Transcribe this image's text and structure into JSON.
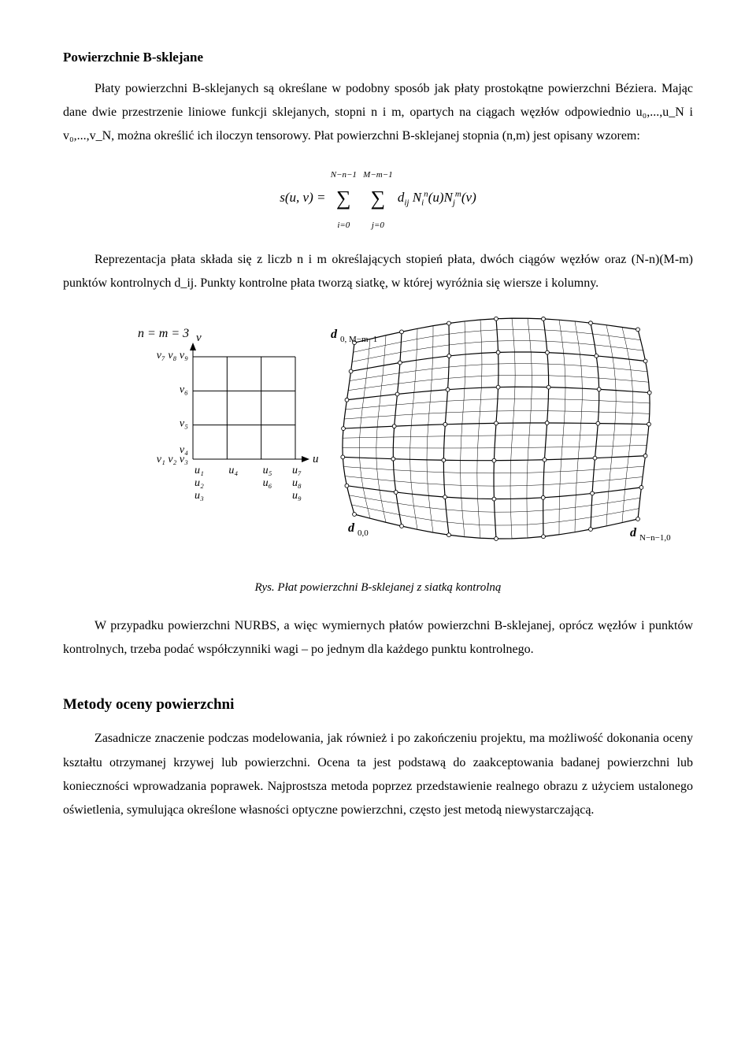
{
  "heading_top": "Powierzchnie B-sklejane",
  "p1": "Płaty powierzchni B-sklejanych są określane w podobny sposób jak płaty prostokątne powierzchni Béziera. Mając dane dwie przestrzenie liniowe funkcji sklejanych, stopni n i m, opartych na ciągach węzłów odpowiednio u₀,...,u_N i v₀,...,v_N, można określić ich iloczyn tensorowy. Płat powierzchni B-sklejanej stopnia (n,m) jest opisany wzorem:",
  "formula": {
    "lhs": "s(u, v) =",
    "sum1_lower": "i=0",
    "sum1_upper": "N−n−1",
    "sum2_lower": "j=0",
    "sum2_upper": "M−m−1",
    "rhs": "d_ij N_i^n(u) N_j^m(v)"
  },
  "p2": "Reprezentacja płata składa się z liczb n i m określających stopień płata, dwóch ciągów węzłów oraz (N-n)(M-m) punktów kontrolnych d_ij. Punkty kontrolne płata tworzą siatkę, w której wyróżnia się wiersze i kolumny.",
  "figure": {
    "type": "diagram",
    "left_label_eq": "n = m = 3",
    "top_right_label": "d",
    "top_right_sub": "0, M−m−1",
    "bot_left_label": "d",
    "bot_left_sub": "0,0",
    "bot_right_label": "d",
    "bot_right_sub": "N−n−1,0",
    "axis_v": "v",
    "axis_u": "u",
    "v_ticks_left": [
      "v₇ v₈ v₉",
      "v₆",
      "v₅",
      "v₄",
      "v₁ v₂ v₃"
    ],
    "u_ticks": [
      "u₁",
      "u₄",
      "u₅",
      "u₇"
    ],
    "u_ticks_row2": [
      "u₂",
      "",
      "u₆",
      "u₈"
    ],
    "u_ticks_row3": [
      "u₃",
      "",
      "",
      "u₉"
    ],
    "grid_color": "#000000",
    "background_color": "#ffffff",
    "node_radius": 2.4,
    "mesh_rows": 7,
    "mesh_cols": 7,
    "fine_grid_div": 3
  },
  "figcaption": "Rys. Płat powierzchni B-sklejanej z siatką kontrolną",
  "p3": "W przypadku powierzchni NURBS, a więc wymiernych płatów powierzchni B-sklejanej, oprócz węzłów i punktów kontrolnych, trzeba podać współczynniki wagi – po jednym dla każdego punktu kontrolnego.",
  "heading2": "Metody oceny powierzchni",
  "p4": "Zasadnicze znaczenie podczas modelowania, jak również i po zakończeniu projektu, ma możliwość dokonania oceny kształtu otrzymanej krzywej lub powierzchni. Ocena ta jest podstawą do zaakceptowania badanej powierzchni lub konieczności wprowadzania poprawek. Najprostsza metoda poprzez przedstawienie realnego obrazu z użyciem ustalonego oświetlenia, symulująca określone własności optyczne powierzchni, często jest metodą niewystarczającą."
}
